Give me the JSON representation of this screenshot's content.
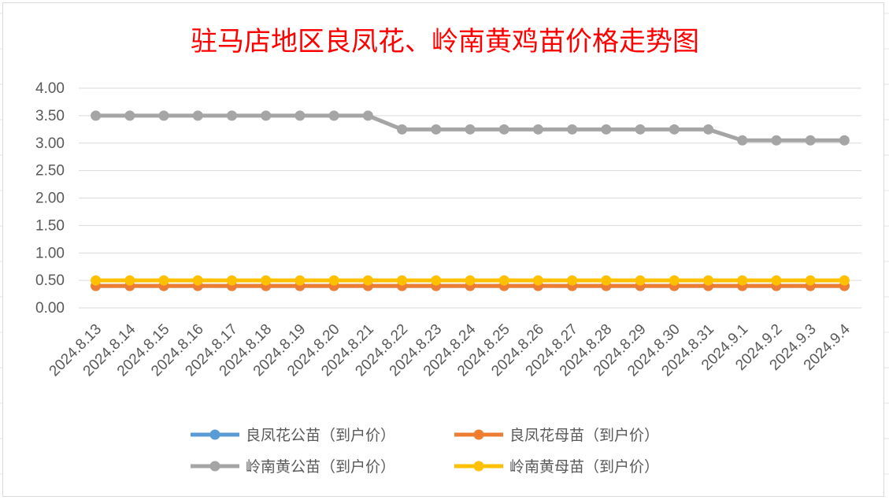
{
  "chart_data": {
    "type": "line",
    "title": "驻马店地区良凤花、岭南黄鸡苗价格走势图",
    "xlabel": "",
    "ylabel": "",
    "categories": [
      "2024.8.13",
      "2024.8.14",
      "2024.8.15",
      "2024.8.16",
      "2024.8.17",
      "2024.8.18",
      "2024.8.19",
      "2024.8.20",
      "2024.8.21",
      "2024.8.22",
      "2024.8.23",
      "2024.8.24",
      "2024.8.25",
      "2024.8.26",
      "2024.8.27",
      "2024.8.28",
      "2024.8.29",
      "2024.8.30",
      "2024.8.31",
      "2024.9.1",
      "2024.9.2",
      "2024.9.3",
      "2024.9.4"
    ],
    "ylim": [
      0,
      4
    ],
    "yticks": [
      "0.00",
      "0.50",
      "1.00",
      "1.50",
      "2.00",
      "2.50",
      "3.00",
      "3.50",
      "4.00"
    ],
    "grid": true,
    "legend_position": "bottom",
    "series": [
      {
        "name": "良凤花公苗（到户价）",
        "color": "#5b9bd5",
        "values": [
          0.4,
          0.4,
          0.4,
          0.4,
          0.4,
          0.4,
          0.4,
          0.4,
          0.4,
          0.4,
          0.4,
          0.4,
          0.4,
          0.4,
          0.4,
          0.4,
          0.4,
          0.4,
          0.4,
          0.4,
          0.4,
          0.4,
          0.4
        ]
      },
      {
        "name": "良凤花母苗（到户价）",
        "color": "#ed7d31",
        "values": [
          0.4,
          0.4,
          0.4,
          0.4,
          0.4,
          0.4,
          0.4,
          0.4,
          0.4,
          0.4,
          0.4,
          0.4,
          0.4,
          0.4,
          0.4,
          0.4,
          0.4,
          0.4,
          0.4,
          0.4,
          0.4,
          0.4,
          0.4
        ]
      },
      {
        "name": "岭南黄公苗（到户价）",
        "color": "#a5a5a5",
        "values": [
          3.5,
          3.5,
          3.5,
          3.5,
          3.5,
          3.5,
          3.5,
          3.5,
          3.5,
          3.25,
          3.25,
          3.25,
          3.25,
          3.25,
          3.25,
          3.25,
          3.25,
          3.25,
          3.25,
          3.05,
          3.05,
          3.05,
          3.05
        ]
      },
      {
        "name": "岭南黄母苗（到户价）",
        "color": "#ffc000",
        "values": [
          0.5,
          0.5,
          0.5,
          0.5,
          0.5,
          0.5,
          0.5,
          0.5,
          0.5,
          0.5,
          0.5,
          0.5,
          0.5,
          0.5,
          0.5,
          0.5,
          0.5,
          0.5,
          0.5,
          0.5,
          0.5,
          0.5,
          0.5
        ]
      }
    ]
  }
}
